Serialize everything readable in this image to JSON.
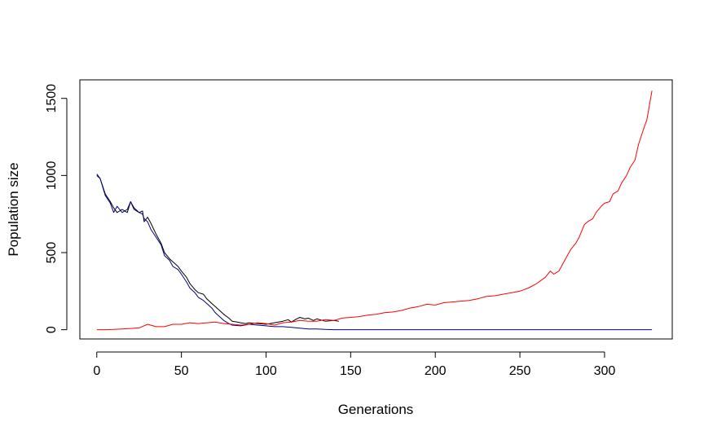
{
  "chart_data": {
    "type": "line",
    "title": "",
    "xlabel": "Generations",
    "ylabel": "Population size",
    "xlim": [
      -10,
      340
    ],
    "ylim": [
      -60,
      1620
    ],
    "xticks": [
      0,
      50,
      100,
      150,
      200,
      250,
      300
    ],
    "yticks": [
      0,
      500,
      1000,
      1500
    ],
    "grid": false,
    "legend": "none",
    "series": [
      {
        "color": "#000000",
        "x": [
          0,
          2,
          5,
          8,
          10,
          12,
          15,
          18,
          20,
          22,
          25,
          27,
          28,
          30,
          32,
          35,
          38,
          40,
          43,
          45,
          48,
          50,
          53,
          55,
          58,
          60,
          63,
          65,
          68,
          70,
          73,
          75,
          78,
          80,
          83,
          85,
          88,
          90,
          95,
          100,
          105,
          110,
          113,
          115,
          118,
          120,
          123,
          125,
          128,
          130,
          135,
          140,
          143
        ],
        "y": [
          1000,
          980,
          880,
          830,
          790,
          760,
          780,
          760,
          830,
          790,
          760,
          770,
          700,
          730,
          690,
          620,
          560,
          500,
          460,
          440,
          410,
          380,
          340,
          300,
          260,
          240,
          230,
          200,
          170,
          150,
          120,
          100,
          75,
          55,
          50,
          45,
          40,
          45,
          40,
          35,
          45,
          55,
          65,
          50,
          70,
          80,
          70,
          75,
          60,
          70,
          55,
          60,
          55
        ]
      },
      {
        "color": "#00008B",
        "x": [
          0,
          2,
          5,
          8,
          10,
          12,
          15,
          18,
          20,
          22,
          25,
          27,
          28,
          30,
          32,
          35,
          38,
          40,
          43,
          45,
          48,
          50,
          53,
          55,
          58,
          60,
          63,
          65,
          68,
          70,
          73,
          75,
          78,
          80,
          85,
          90,
          95,
          100,
          105,
          110,
          115,
          120,
          125,
          130,
          135,
          140,
          145,
          150,
          200,
          250,
          300,
          328
        ],
        "y": [
          1010,
          980,
          870,
          820,
          760,
          800,
          760,
          780,
          830,
          780,
          760,
          750,
          720,
          700,
          650,
          600,
          550,
          480,
          450,
          410,
          390,
          360,
          310,
          270,
          240,
          210,
          190,
          170,
          140,
          110,
          80,
          60,
          40,
          30,
          25,
          35,
          30,
          25,
          20,
          20,
          15,
          10,
          5,
          5,
          2,
          0,
          0,
          0,
          0,
          0,
          0,
          0
        ]
      },
      {
        "color": "#FF0000",
        "x": [
          0,
          5,
          10,
          15,
          20,
          25,
          30,
          35,
          40,
          45,
          50,
          55,
          60,
          65,
          70,
          75,
          80,
          85,
          90,
          95,
          100,
          105,
          110,
          115,
          120,
          125,
          130,
          135,
          140,
          145,
          150,
          155,
          160,
          165,
          170,
          175,
          180,
          185,
          190,
          195,
          200,
          205,
          210,
          215,
          220,
          225,
          230,
          235,
          240,
          245,
          250,
          255,
          260,
          265,
          268,
          270,
          273,
          275,
          278,
          280,
          283,
          285,
          288,
          290,
          293,
          295,
          298,
          300,
          303,
          305,
          308,
          310,
          313,
          315,
          318,
          320,
          323,
          325,
          328
        ],
        "y": [
          0,
          0,
          2,
          5,
          8,
          12,
          35,
          20,
          20,
          35,
          35,
          45,
          40,
          45,
          50,
          40,
          35,
          30,
          35,
          45,
          40,
          30,
          45,
          50,
          60,
          55,
          55,
          65,
          60,
          75,
          80,
          85,
          95,
          100,
          110,
          115,
          125,
          140,
          150,
          165,
          160,
          175,
          180,
          185,
          190,
          200,
          215,
          220,
          230,
          240,
          250,
          270,
          300,
          340,
          380,
          360,
          380,
          420,
          480,
          520,
          560,
          600,
          680,
          700,
          720,
          760,
          800,
          820,
          830,
          880,
          900,
          950,
          1000,
          1050,
          1100,
          1200,
          1300,
          1360,
          1550
        ]
      }
    ]
  }
}
